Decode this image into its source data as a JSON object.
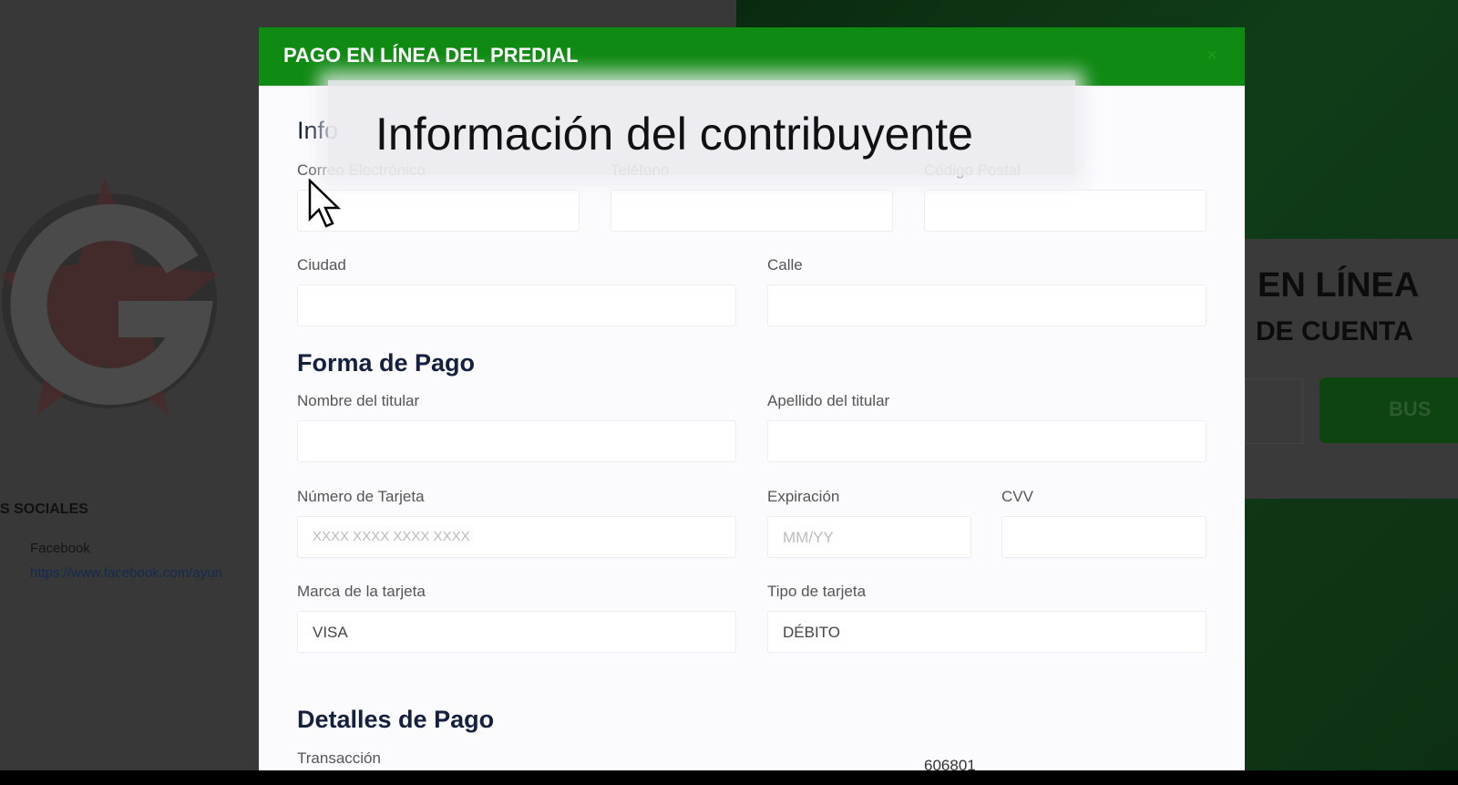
{
  "background": {
    "heading1": "EN LÍNEA",
    "heading2": "DE CUENTA",
    "search_button": "BUS",
    "social_heading": "S SOCIALES",
    "facebook_label": "Facebook",
    "facebook_link": "https://www.facebook.com/ayun"
  },
  "modal": {
    "title": "PAGO EN LÍNEA DEL PREDIAL",
    "close": "×",
    "section_contribuyente": "Info",
    "overlay_caption": "Información del contribuyente",
    "labels": {
      "email": "Correo Electrónico",
      "phone": "Teléfono",
      "zip": "Código Postal",
      "city": "Ciudad",
      "street": "Calle",
      "holder_name": "Nombre del titular",
      "holder_lastname": "Apellido del titular",
      "card_number": "Número de Tarjeta",
      "expiration": "Expiración",
      "cvv": "CVV",
      "card_brand": "Marca de la tarjeta",
      "card_type": "Tipo de tarjeta",
      "transaction": "Transacción"
    },
    "placeholders": {
      "card_number": "XXXX XXXX XXXX XXXX",
      "expiration": "MM/YY"
    },
    "values": {
      "card_brand": "VISA",
      "card_type": "DÉBITO",
      "transaction_number": "606801"
    },
    "section_pago": "Forma de Pago",
    "section_detalles": "Detalles de Pago"
  },
  "colors": {
    "header": "#0f8a12",
    "heading_text": "#15203d"
  }
}
